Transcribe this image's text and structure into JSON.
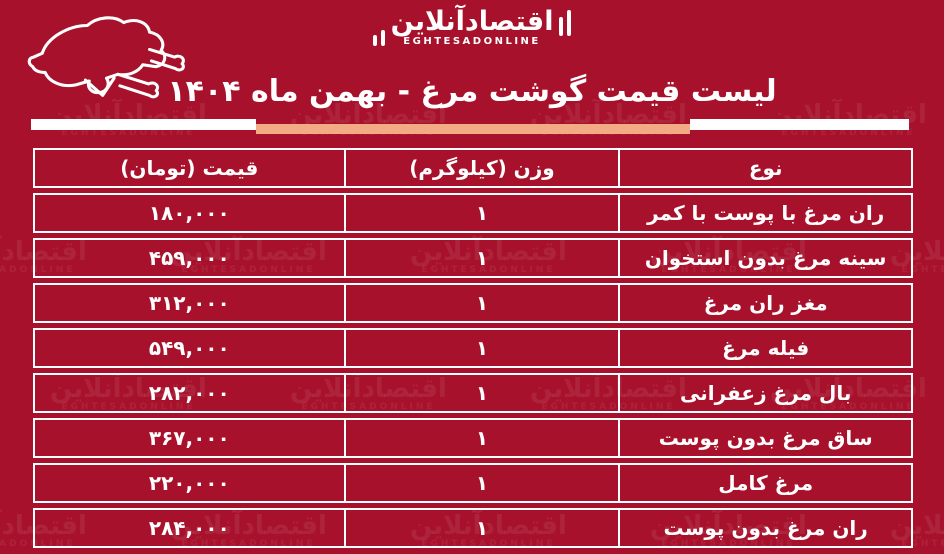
{
  "page": {
    "bg_color": "#A8112C",
    "accent_peach": "#F2AB85",
    "text_color": "#FFFFFF"
  },
  "logo": {
    "fa": "اقتصادآنلاین",
    "en": "EGHTESADONLINE"
  },
  "watermark": {
    "fa": "اقتصادآنلاین",
    "en": "EGHTESADONLINE"
  },
  "title": "لیست قیمت گوشت مرغ - بهمن ماه ۱۴۰۴",
  "table": {
    "headers": {
      "type": "نوع",
      "weight": "وزن (کیلوگرم)",
      "price": "قیمت (تومان)"
    },
    "rows": [
      {
        "type": "ران مرغ با پوست با کمر",
        "weight": "۱",
        "price": "۱۸۰,۰۰۰"
      },
      {
        "type": "سینه مرغ بدون استخوان",
        "weight": "۱",
        "price": "۴۵۹,۰۰۰"
      },
      {
        "type": "مغز ران مرغ",
        "weight": "۱",
        "price": "۳۱۲,۰۰۰"
      },
      {
        "type": "فیله مرغ",
        "weight": "۱",
        "price": "۵۴۹,۰۰۰"
      },
      {
        "type": "بال مرغ زعفرانی",
        "weight": "۱",
        "price": "۲۸۲,۰۰۰"
      },
      {
        "type": "ساق مرغ بدون پوست",
        "weight": "۱",
        "price": "۳۶۷,۰۰۰"
      },
      {
        "type": "مرغ کامل",
        "weight": "۱",
        "price": "۲۲۰,۰۰۰"
      },
      {
        "type": "ران مرغ بدون پوست",
        "weight": "۱",
        "price": "۲۸۴,۰۰۰"
      }
    ]
  },
  "chart_data": {
    "type": "table",
    "title": "لیست قیمت گوشت مرغ - بهمن ماه ۱۴۰۴",
    "columns": [
      "نوع",
      "وزن (کیلوگرم)",
      "قیمت (تومان)"
    ],
    "categories": [
      "ران مرغ با پوست با کمر",
      "سینه مرغ بدون استخوان",
      "مغز ران مرغ",
      "فیله مرغ",
      "بال مرغ زعفرانی",
      "ساق مرغ بدون پوست",
      "مرغ کامل",
      "ران مرغ بدون پوست"
    ],
    "weights_kg": [
      1,
      1,
      1,
      1,
      1,
      1,
      1,
      1
    ],
    "prices_toman": [
      180000,
      459000,
      312000,
      549000,
      282000,
      367000,
      220000,
      284000
    ]
  }
}
